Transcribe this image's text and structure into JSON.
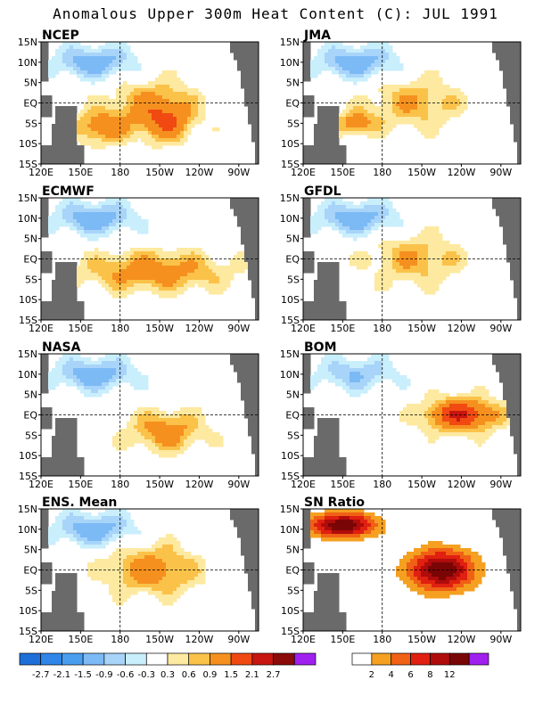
{
  "figure": {
    "title": "Anomalous Upper 300m Heat Content (C): JUL 1991"
  },
  "chart_data": {
    "type": "heatmap",
    "x_ticks": [
      "120E",
      "150E",
      "180",
      "150W",
      "120W",
      "90W"
    ],
    "y_ticks": [
      "15N",
      "10N",
      "5N",
      "EQ",
      "5S",
      "10S",
      "15S"
    ],
    "grid": "dashed lines at EQ and 180",
    "panels": [
      {
        "name": "NCEP",
        "field": "anomaly",
        "features": [
          {
            "region": "west-north-pacific-cool",
            "value": -1.2
          },
          {
            "region": "south-central-warm",
            "value": 1.2
          },
          {
            "region": "equatorial-central-warm",
            "value": 0.9
          }
        ]
      },
      {
        "name": "JMA",
        "field": "anomaly",
        "features": [
          {
            "region": "west-north-pacific-cool",
            "value": -1.2
          },
          {
            "region": "equatorial-central-warm",
            "value": 0.9
          },
          {
            "region": "south-west-warm",
            "value": 1.2
          }
        ]
      },
      {
        "name": "ECMWF",
        "field": "anomaly",
        "features": [
          {
            "region": "west-north-pacific-cool",
            "value": -1.2
          },
          {
            "region": "equatorial-south-warm-band",
            "value": 1.2
          }
        ]
      },
      {
        "name": "GFDL",
        "field": "anomaly",
        "features": [
          {
            "region": "west-north-pacific-cool",
            "value": -1.2
          },
          {
            "region": "equatorial-central-warm",
            "value": 0.9
          }
        ]
      },
      {
        "name": "NASA",
        "field": "anomaly",
        "features": [
          {
            "region": "west-north-pacific-cool",
            "value": -1.2
          },
          {
            "region": "central-south-warm",
            "value": 1.2
          }
        ]
      },
      {
        "name": "BOM",
        "field": "anomaly",
        "features": [
          {
            "region": "west-north-pacific-cool",
            "value": -0.9
          },
          {
            "region": "east-equatorial-warm-core",
            "value": 2.1
          }
        ]
      },
      {
        "name": "ENS. Mean",
        "field": "anomaly",
        "features": [
          {
            "region": "west-north-pacific-cool",
            "value": -1.2
          },
          {
            "region": "equatorial-central-warm",
            "value": 1.2
          }
        ]
      },
      {
        "name": "SN Ratio",
        "field": "ratio",
        "features": [
          {
            "region": "north-west-high-ratio",
            "value": 12
          },
          {
            "region": "central-equatorial-high-ratio",
            "value": 12
          }
        ]
      }
    ],
    "anomaly_scale": {
      "labels": [
        "-2.7",
        "-2.1",
        "-1.5",
        "-0.9",
        "-0.6",
        "-0.3",
        "0.3",
        "0.6",
        "0.9",
        "1.5",
        "2.1",
        "2.7"
      ],
      "colors": [
        "#1e6fd8",
        "#2f86e8",
        "#4a9ef0",
        "#7cbaf5",
        "#a8d4fa",
        "#c9eefc",
        "#ffffff",
        "#fde9a0",
        "#fbc24a",
        "#f5901f",
        "#f04a12",
        "#c81510",
        "#8b0a0a",
        "#a020f0"
      ]
    },
    "ratio_scale": {
      "labels": [
        "2",
        "4",
        "6",
        "8",
        "12"
      ],
      "colors": [
        "#ffffff",
        "#f5a020",
        "#f06015",
        "#e02010",
        "#b00c0c",
        "#7a0505",
        "#a020f0"
      ]
    },
    "land_color": "#6a6a6a"
  }
}
